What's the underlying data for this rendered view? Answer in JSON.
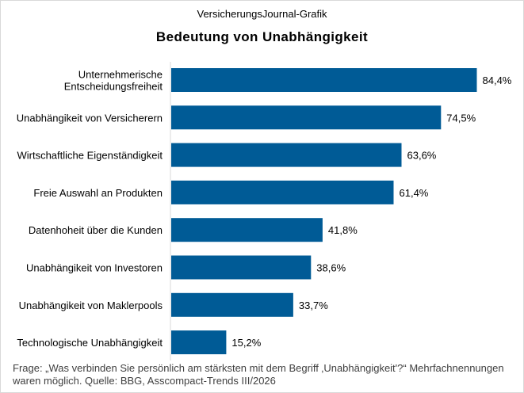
{
  "header": {
    "source_line": "VersicherungsJournal-Grafik"
  },
  "chart_data": {
    "type": "bar",
    "orientation": "horizontal",
    "title": "Bedeutung  von Unabhängigkeit",
    "categories": [
      [
        "Unternehmerische",
        "Entscheidungsfreiheit"
      ],
      [
        "Unabhängikeit von Versicherern"
      ],
      [
        "Wirtschaftliche Eigenständigkeit"
      ],
      [
        "Freie Auswahl an Produkten"
      ],
      [
        "Datenhoheit über die Kunden"
      ],
      [
        "Unabhängikeit von Investoren"
      ],
      [
        "Unabhängikeit von Maklerpools"
      ],
      [
        "Technologische Unabhängigkeit"
      ]
    ],
    "values": [
      84.4,
      74.5,
      63.6,
      61.4,
      41.8,
      38.6,
      33.7,
      15.2
    ],
    "value_labels": [
      "84,4%",
      "74,5%",
      "63,6%",
      "61,4%",
      "41,8%",
      "38,6%",
      "33,7%",
      "15,2%"
    ],
    "bar_color": "#005b96",
    "xlim": [
      0,
      100
    ],
    "grid": false,
    "legend": "none"
  },
  "footnote": "Frage: „Was verbinden  Sie persönlich  am stärksten mit dem Begriff ‚Unabhängigkeit'?“  Mehrfachnennungen waren  möglich. Quelle: BBG, Asscompact-Trends III/2026"
}
